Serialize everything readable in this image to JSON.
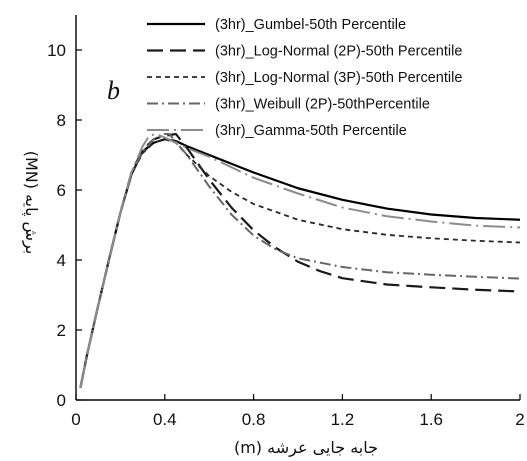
{
  "chart_data": {
    "type": "line",
    "title": "",
    "panel_label": "b",
    "xlabel": "(m) جابه جایی عرشه",
    "ylabel": "(MN) برش پایه",
    "xlim": [
      0,
      2
    ],
    "ylim": [
      0,
      11
    ],
    "xticks": [
      0,
      0.4,
      0.8,
      1.2,
      1.6,
      2
    ],
    "xtick_labels": [
      "0",
      "0.4",
      "0.8",
      "1.2",
      "1.6",
      "2"
    ],
    "yticks": [
      0,
      2,
      4,
      6,
      8,
      10
    ],
    "ytick_labels": [
      "0",
      "2",
      "4",
      "6",
      "8",
      "10"
    ],
    "grid": false,
    "legend_position": "top-right",
    "series": [
      {
        "name": "(3hr)_Gumbel-50th Percentile",
        "color": "#000000",
        "dash": "solid",
        "points": [
          [
            0.02,
            0.35
          ],
          [
            0.05,
            1.3
          ],
          [
            0.1,
            2.7
          ],
          [
            0.15,
            4.05
          ],
          [
            0.2,
            5.35
          ],
          [
            0.25,
            6.45
          ],
          [
            0.3,
            7.1
          ],
          [
            0.35,
            7.35
          ],
          [
            0.4,
            7.45
          ],
          [
            0.45,
            7.4
          ],
          [
            0.5,
            7.25
          ],
          [
            0.6,
            7.0
          ],
          [
            0.7,
            6.75
          ],
          [
            0.8,
            6.5
          ],
          [
            1.0,
            6.05
          ],
          [
            1.2,
            5.72
          ],
          [
            1.4,
            5.47
          ],
          [
            1.6,
            5.3
          ],
          [
            1.8,
            5.2
          ],
          [
            2.0,
            5.15
          ]
        ]
      },
      {
        "name": "(3hr)_Log-Normal (2P)-50th Percentile",
        "color": "#1a1a1a",
        "dash": "long-dash",
        "points": [
          [
            0.02,
            0.35
          ],
          [
            0.05,
            1.3
          ],
          [
            0.1,
            2.7
          ],
          [
            0.15,
            4.05
          ],
          [
            0.2,
            5.35
          ],
          [
            0.25,
            6.5
          ],
          [
            0.3,
            7.15
          ],
          [
            0.35,
            7.45
          ],
          [
            0.4,
            7.55
          ],
          [
            0.45,
            7.6
          ],
          [
            0.5,
            7.2
          ],
          [
            0.6,
            6.3
          ],
          [
            0.7,
            5.5
          ],
          [
            0.8,
            4.85
          ],
          [
            0.9,
            4.35
          ],
          [
            1.0,
            3.95
          ],
          [
            1.1,
            3.68
          ],
          [
            1.2,
            3.48
          ],
          [
            1.4,
            3.3
          ],
          [
            1.6,
            3.22
          ],
          [
            1.8,
            3.15
          ],
          [
            2.0,
            3.1
          ]
        ]
      },
      {
        "name": "(3hr)_Log-Normal (3P)-50th Percentile",
        "color": "#2a2a2a",
        "dash": "short-dash",
        "points": [
          [
            0.02,
            0.35
          ],
          [
            0.05,
            1.3
          ],
          [
            0.1,
            2.7
          ],
          [
            0.15,
            4.05
          ],
          [
            0.2,
            5.35
          ],
          [
            0.25,
            6.45
          ],
          [
            0.3,
            7.05
          ],
          [
            0.35,
            7.35
          ],
          [
            0.4,
            7.45
          ],
          [
            0.45,
            7.35
          ],
          [
            0.5,
            7.0
          ],
          [
            0.6,
            6.4
          ],
          [
            0.7,
            5.95
          ],
          [
            0.8,
            5.6
          ],
          [
            1.0,
            5.15
          ],
          [
            1.2,
            4.88
          ],
          [
            1.4,
            4.72
          ],
          [
            1.6,
            4.62
          ],
          [
            1.8,
            4.55
          ],
          [
            2.0,
            4.5
          ]
        ]
      },
      {
        "name": "(3hr)_Weibull (2P)-50thPercentile",
        "color": "#666666",
        "dash": "dash-dot",
        "points": [
          [
            0.02,
            0.35
          ],
          [
            0.05,
            1.3
          ],
          [
            0.1,
            2.7
          ],
          [
            0.15,
            4.05
          ],
          [
            0.2,
            5.35
          ],
          [
            0.25,
            6.5
          ],
          [
            0.3,
            7.1
          ],
          [
            0.35,
            7.45
          ],
          [
            0.4,
            7.6
          ],
          [
            0.42,
            7.6
          ],
          [
            0.5,
            7.0
          ],
          [
            0.6,
            6.1
          ],
          [
            0.7,
            5.3
          ],
          [
            0.8,
            4.7
          ],
          [
            0.9,
            4.3
          ],
          [
            1.0,
            4.05
          ],
          [
            1.2,
            3.8
          ],
          [
            1.4,
            3.65
          ],
          [
            1.6,
            3.58
          ],
          [
            1.8,
            3.52
          ],
          [
            2.0,
            3.47
          ]
        ]
      },
      {
        "name": "(3hr)_Gamma-50th Percentile",
        "color": "#8c8c8c",
        "dash": "long-dash-dot",
        "points": [
          [
            0.02,
            0.35
          ],
          [
            0.05,
            1.3
          ],
          [
            0.1,
            2.7
          ],
          [
            0.15,
            4.05
          ],
          [
            0.2,
            5.35
          ],
          [
            0.25,
            6.5
          ],
          [
            0.3,
            7.25
          ],
          [
            0.33,
            7.55
          ],
          [
            0.36,
            7.6
          ],
          [
            0.4,
            7.5
          ],
          [
            0.45,
            7.35
          ],
          [
            0.5,
            7.2
          ],
          [
            0.6,
            6.95
          ],
          [
            0.7,
            6.65
          ],
          [
            0.8,
            6.35
          ],
          [
            1.0,
            5.9
          ],
          [
            1.2,
            5.5
          ],
          [
            1.4,
            5.25
          ],
          [
            1.6,
            5.1
          ],
          [
            1.8,
            4.98
          ],
          [
            2.0,
            4.93
          ]
        ]
      }
    ]
  }
}
